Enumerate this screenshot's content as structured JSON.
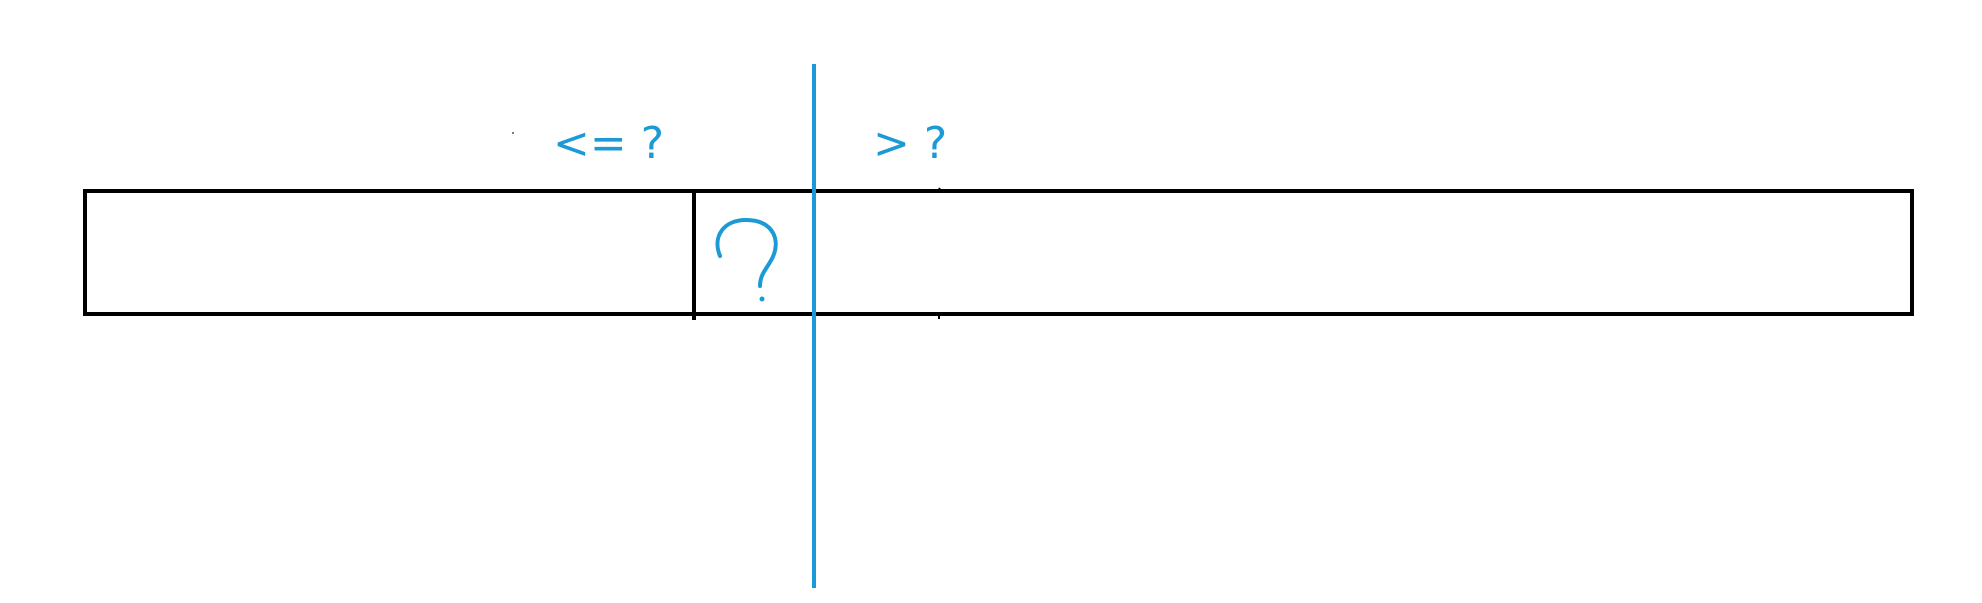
{
  "diagram": {
    "labels": {
      "left_condition": "<= ?",
      "right_condition": "> ?"
    },
    "colors": {
      "annotation": "#1b9ad6",
      "box_stroke": "#000000",
      "background": "#ffffff"
    }
  }
}
